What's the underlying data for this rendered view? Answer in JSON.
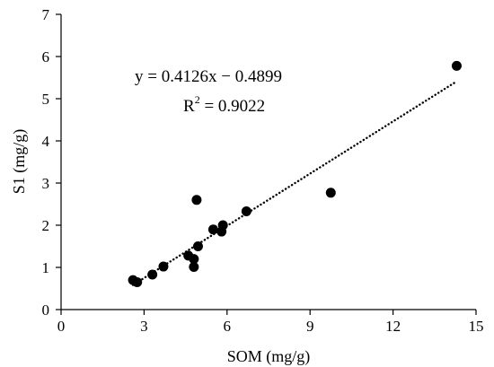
{
  "chart_data": {
    "type": "scatter",
    "xlabel": "SOM (mg/g)",
    "ylabel": "S1 (mg/g)",
    "xlim": [
      0,
      15
    ],
    "ylim": [
      0,
      7
    ],
    "x_ticks": [
      0,
      3,
      6,
      9,
      12,
      15
    ],
    "y_ticks": [
      0,
      1,
      2,
      3,
      4,
      5,
      6,
      7
    ],
    "grid": false,
    "legend": "none",
    "points": [
      {
        "x": 2.6,
        "y": 0.7
      },
      {
        "x": 2.75,
        "y": 0.65
      },
      {
        "x": 3.3,
        "y": 0.83
      },
      {
        "x": 3.7,
        "y": 1.02
      },
      {
        "x": 4.6,
        "y": 1.28
      },
      {
        "x": 4.8,
        "y": 1.2
      },
      {
        "x": 4.8,
        "y": 1.01
      },
      {
        "x": 4.95,
        "y": 1.5
      },
      {
        "x": 4.9,
        "y": 2.6
      },
      {
        "x": 5.5,
        "y": 1.9
      },
      {
        "x": 5.8,
        "y": 1.85
      },
      {
        "x": 5.85,
        "y": 2.0
      },
      {
        "x": 6.7,
        "y": 2.33
      },
      {
        "x": 9.75,
        "y": 2.77
      },
      {
        "x": 14.3,
        "y": 5.78
      }
    ],
    "trendline": {
      "type": "linear",
      "style": "dotted",
      "slope": 0.4126,
      "intercept": -0.4899,
      "x_range": [
        2.6,
        14.3
      ]
    },
    "annotations": {
      "equation": "y = 0.4126x − 0.4899",
      "r2_prefix": "R",
      "r2_exponent": "2",
      "r2_suffix": " = 0.9022"
    },
    "colors": {
      "points": "#000000",
      "trendline": "#000000",
      "axes": "#000000"
    }
  }
}
